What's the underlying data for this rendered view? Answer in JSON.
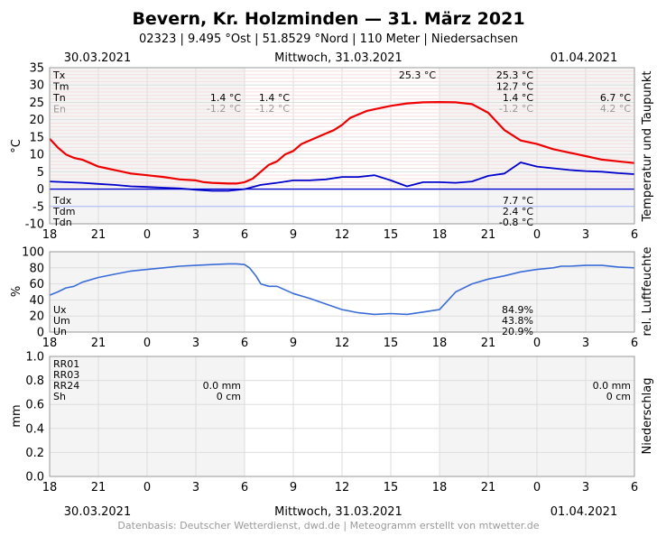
{
  "header": {
    "title": "Bevern, Kr. Holzminden  —  31. März 2021",
    "subtitle": "02323  |  9.495 °Ost  |  51.8529 °Nord  |  110 Meter  |  Niedersachsen"
  },
  "dates": {
    "left": "30.03.2021",
    "center": "Mittwoch, 31.03.2021",
    "right": "01.04.2021"
  },
  "footer": "Datenbasis: Deutscher Wetterdienst, dwd.de  |  Meteogramm erstellt von mtwetter.de",
  "x_ticks": [
    "18",
    "21",
    "0",
    "3",
    "6",
    "9",
    "12",
    "15",
    "18",
    "21",
    "0",
    "3",
    "6"
  ],
  "colors": {
    "temp": "#ee0000",
    "dew": "#0000cc",
    "humidity": "#3a6cd8",
    "grid": "#dddddd",
    "night_shade": "#f4f4f4"
  },
  "chart_data": [
    {
      "type": "line",
      "title": "Temperatur und Taupunkt",
      "ylabel": "°C",
      "side_label": "Temperatur und Taupunkt",
      "ylim": [
        -10,
        35
      ],
      "yticks": [
        -10,
        -5,
        0,
        5,
        10,
        15,
        20,
        25,
        30,
        35
      ],
      "x_range_hours": [
        0,
        36
      ],
      "series": [
        {
          "name": "Temperatur",
          "x": [
            0,
            0.5,
            1,
            1.5,
            2,
            2.5,
            3,
            3.5,
            4,
            5,
            6,
            7,
            8,
            9,
            9.5,
            10,
            10.5,
            11,
            11.5,
            12,
            12.5,
            13,
            13.5,
            14,
            14.5,
            15,
            15.5,
            16,
            16.5,
            17,
            17.5,
            18,
            18.5,
            19,
            19.5,
            20,
            21,
            22,
            23,
            24,
            25,
            26,
            27,
            28,
            29,
            30,
            31,
            32,
            33,
            34,
            35,
            36
          ],
          "values": [
            14.5,
            12,
            10,
            9,
            8.5,
            7.5,
            6.5,
            6,
            5.5,
            4.5,
            4,
            3.5,
            2.8,
            2.5,
            2,
            1.8,
            1.7,
            1.6,
            1.6,
            2,
            3,
            5,
            7,
            8,
            10,
            11,
            13,
            14,
            15,
            16,
            17,
            18.5,
            20.5,
            21.5,
            22.5,
            23,
            24,
            24.7,
            25,
            25.1,
            25,
            24.5,
            22,
            17,
            14,
            13,
            11.5,
            10.5,
            9.5,
            8.5,
            8,
            7.5
          ]
        },
        {
          "name": "Taupunkt",
          "x": [
            0,
            1,
            2,
            3,
            4,
            5,
            6,
            7,
            8,
            9,
            10,
            11,
            12,
            13,
            14,
            15,
            16,
            17,
            18,
            19,
            20,
            21,
            22,
            23,
            24,
            25,
            26,
            27,
            28,
            29,
            30,
            31,
            32,
            33,
            34,
            35,
            36
          ],
          "values": [
            2.2,
            2,
            1.8,
            1.5,
            1.2,
            0.8,
            0.6,
            0.4,
            0.2,
            -0.2,
            -0.5,
            -0.5,
            0,
            1.2,
            1.8,
            2.5,
            2.5,
            2.8,
            3.5,
            3.5,
            4,
            2.5,
            0.8,
            2,
            2,
            1.8,
            2.2,
            3.8,
            4.5,
            7.7,
            6.5,
            6,
            5.5,
            5.2,
            5,
            4.6,
            4.3
          ]
        }
      ],
      "labels_left": [
        "Tx",
        "Tm",
        "Tn",
        "En"
      ],
      "labels_left_bottom": [
        "Tdx",
        "Tdm",
        "Tdn"
      ],
      "day1": {
        "Tn": "1.4 °C",
        "En": "-1.2 °C"
      },
      "day1b": {
        "Tn": "1.4 °C",
        "En": "-1.2 °C"
      },
      "day2": {
        "Tx": "25.3 °C",
        "Tm": "12.7 °C",
        "Tn": "1.4 °C",
        "En": "-1.2 °C",
        "Tdx": "7.7 °C",
        "Tdm": "2.4 °C",
        "Tdn": "-0.8 °C"
      },
      "day2_tx_marker": "25.3 °C",
      "day3": {
        "Tn": "6.7 °C",
        "En": "4.2 °C"
      }
    },
    {
      "type": "line",
      "title": "rel. Luftfeuchte",
      "ylabel": "%",
      "side_label": "rel. Luftfeuchte",
      "ylim": [
        0,
        100
      ],
      "yticks": [
        0,
        20,
        40,
        60,
        80,
        100
      ],
      "series": [
        {
          "name": "Luftfeuchte",
          "x": [
            0,
            0.5,
            1,
            1.5,
            2,
            3,
            4,
            5,
            6,
            7,
            8,
            9,
            10,
            11,
            11.5,
            12,
            12.3,
            12.7,
            13,
            13.5,
            14,
            15,
            16,
            17,
            18,
            19,
            20,
            21,
            22,
            23,
            24,
            25,
            26,
            27,
            28,
            29,
            30,
            31,
            31.5,
            32,
            33,
            34,
            35,
            36
          ],
          "values": [
            46,
            50,
            55,
            57,
            62,
            68,
            72,
            76,
            78,
            80,
            82,
            83,
            84,
            85,
            85,
            84,
            80,
            70,
            60,
            57,
            57,
            48,
            42,
            35,
            28,
            24,
            22,
            23,
            22,
            25,
            28,
            50,
            60,
            66,
            70,
            75,
            78,
            80,
            82,
            82,
            83,
            83,
            81,
            80
          ]
        }
      ],
      "labels_left": [
        "Ux",
        "Um",
        "Un"
      ],
      "day2": {
        "Ux": "84.9%",
        "Um": "43.8%",
        "Un": "20.9%"
      }
    },
    {
      "type": "bar",
      "title": "Niederschlag",
      "ylabel": "mm",
      "side_label": "Niederschlag",
      "ylim": [
        0.0,
        1.0
      ],
      "yticks": [
        "0.0",
        "0.2",
        "0.4",
        "0.6",
        "0.8",
        "1.0"
      ],
      "values": [],
      "labels_left": [
        "RR01",
        "RR03",
        "RR24",
        "Sh"
      ],
      "day1": {
        "RR24": "0.0 mm",
        "Sh": "0 cm"
      },
      "day3": {
        "RR24": "0.0 mm",
        "Sh": "0 cm"
      }
    }
  ]
}
